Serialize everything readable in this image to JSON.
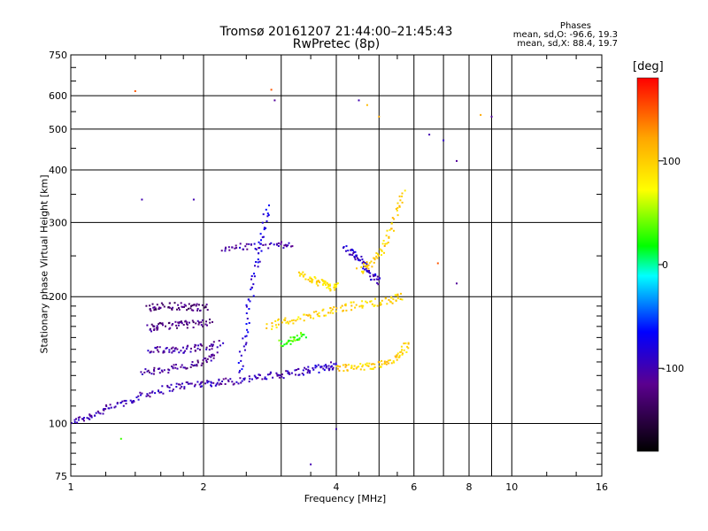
{
  "title_line1": "Tromsø 20161207 21:44:00–21:45:43",
  "title_line2": "RwPretec (8p)",
  "stats": {
    "heading": "Phases",
    "line_o": "mean, sd,O: -96.6, 19.3",
    "line_x": "mean, sd,X: 88.4, 19.7"
  },
  "chart_data": {
    "type": "scatter",
    "title": "Tromsø 20161207 21:44:00–21:45:43",
    "subtitle": "RwPretec (8p)",
    "xlabel": "Frequency [MHz]",
    "ylabel": "Stationary phase Virtual Height [km]",
    "xscale": "log",
    "yscale": "log",
    "xlim": [
      1,
      16
    ],
    "ylim": [
      75,
      750
    ],
    "xticks": [
      1,
      2,
      4,
      6,
      8,
      10,
      16
    ],
    "xtick_labels": [
      "1",
      "2",
      "4",
      "6",
      "8",
      "10",
      "16"
    ],
    "yticks": [
      75,
      100,
      200,
      300,
      400,
      500,
      600,
      750
    ],
    "ytick_labels": [
      "75",
      "100",
      "200",
      "300",
      "400",
      "500",
      "600",
      "750"
    ],
    "grid": true,
    "colorbar": {
      "label": "[deg]",
      "range": [
        -180,
        180
      ],
      "ticks": [
        100,
        0,
        -100
      ],
      "tick_labels": [
        "100",
        "0",
        "-100"
      ]
    },
    "color_scale": [
      "#000000",
      "#5b008f",
      "#0000ff",
      "#00ffff",
      "#00ff00",
      "#ffff00",
      "#ffa500",
      "#ff0000"
    ],
    "traces": [
      {
        "f": [
          1.0,
          1.1,
          1.2,
          1.35,
          1.5,
          1.7,
          1.9,
          2.1,
          2.3,
          2.6
        ],
        "h": [
          101,
          104,
          108,
          113,
          118,
          122,
          124,
          125,
          126,
          128
        ],
        "phase": -100
      },
      {
        "f": [
          2.6,
          2.9,
          3.2,
          3.5,
          3.8,
          4.0
        ],
        "h": [
          128,
          130,
          132,
          134,
          136,
          138
        ],
        "phase": -95
      },
      {
        "f": [
          4.0,
          4.4,
          4.8,
          5.2,
          5.6,
          5.8
        ],
        "h": [
          136,
          136,
          137,
          139,
          145,
          155
        ],
        "phase": 100
      },
      {
        "f": [
          1.45,
          1.6,
          1.8,
          2.0,
          2.15
        ],
        "h": [
          132,
          134,
          136,
          140,
          146
        ],
        "phase": -110
      },
      {
        "f": [
          1.5,
          1.65,
          1.8,
          2.0,
          2.2
        ],
        "h": [
          148,
          150,
          150,
          152,
          155
        ],
        "phase": -105
      },
      {
        "f": [
          1.5,
          1.6,
          1.75,
          1.9,
          2.1
        ],
        "h": [
          168,
          170,
          172,
          172,
          174
        ],
        "phase": -120
      },
      {
        "f": [
          1.5,
          1.6,
          1.75,
          1.9,
          2.05
        ],
        "h": [
          188,
          190,
          190,
          188,
          190
        ],
        "phase": -125
      },
      {
        "f": [
          2.4,
          2.5,
          2.6,
          2.7,
          2.8
        ],
        "h": [
          130,
          170,
          220,
          270,
          330
        ],
        "phase": -80
      },
      {
        "f": [
          2.2,
          2.5,
          2.9,
          3.2
        ],
        "h": [
          262,
          262,
          265,
          268
        ],
        "phase": -100
      },
      {
        "f": [
          2.8,
          3.1,
          3.5,
          3.9,
          4.3,
          4.8,
          5.3,
          5.7
        ],
        "h": [
          170,
          175,
          180,
          185,
          190,
          193,
          196,
          200
        ],
        "phase": 95
      },
      {
        "f": [
          3.3,
          3.5,
          3.7,
          3.9,
          4.0
        ],
        "h": [
          225,
          220,
          215,
          210,
          212
        ],
        "phase": 90
      },
      {
        "f": [
          4.2,
          4.4,
          4.6,
          4.8,
          5.0
        ],
        "h": [
          260,
          250,
          240,
          225,
          215
        ],
        "phase": -90
      },
      {
        "f": [
          4.5,
          4.8,
          5.1,
          5.4,
          5.7
        ],
        "h": [
          230,
          240,
          260,
          300,
          360
        ],
        "phase": 100
      },
      {
        "f": [
          3.0,
          3.2,
          3.4
        ],
        "h": [
          155,
          158,
          162
        ],
        "phase": 30
      }
    ],
    "scatter_points": [
      {
        "f": 1.4,
        "h": 615,
        "phase": 150
      },
      {
        "f": 2.85,
        "h": 620,
        "phase": 150
      },
      {
        "f": 2.9,
        "h": 585,
        "phase": -110
      },
      {
        "f": 4.5,
        "h": 585,
        "phase": -100
      },
      {
        "f": 4.7,
        "h": 570,
        "phase": 110
      },
      {
        "f": 5.0,
        "h": 535,
        "phase": 120
      },
      {
        "f": 8.5,
        "h": 540,
        "phase": 120
      },
      {
        "f": 9.0,
        "h": 535,
        "phase": -110
      },
      {
        "f": 6.5,
        "h": 485,
        "phase": -100
      },
      {
        "f": 7.0,
        "h": 470,
        "phase": -90
      },
      {
        "f": 7.5,
        "h": 420,
        "phase": -110
      },
      {
        "f": 6.8,
        "h": 240,
        "phase": 150
      },
      {
        "f": 7.5,
        "h": 215,
        "phase": -110
      },
      {
        "f": 4.0,
        "h": 97,
        "phase": -100
      },
      {
        "f": 3.5,
        "h": 80,
        "phase": -100
      },
      {
        "f": 1.3,
        "h": 92,
        "phase": 30
      },
      {
        "f": 1.9,
        "h": 340,
        "phase": -100
      },
      {
        "f": 1.45,
        "h": 340,
        "phase": -100
      }
    ]
  }
}
